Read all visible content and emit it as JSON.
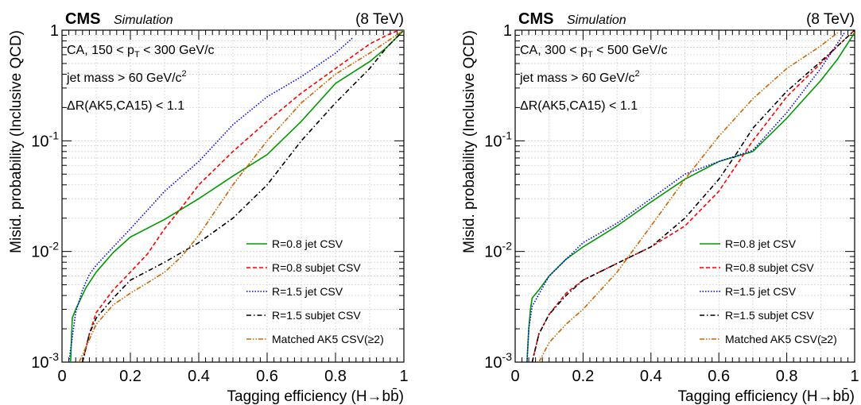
{
  "chart_data": [
    {
      "type": "line",
      "experiment": "CMS",
      "subtitle": "Simulation",
      "energy": "(8 TeV)",
      "xlabel": "Tagging efficiency (H→bb̄)",
      "ylabel": "Misid. probability (Inclusive QCD)",
      "xlim": [
        0,
        1
      ],
      "ylim": [
        0.001,
        1
      ],
      "yscale": "log",
      "grid": true,
      "legend_position": "bottom-right",
      "x_ticks": [
        "0",
        "0.2",
        "0.4",
        "0.6",
        "0.8",
        "1"
      ],
      "y_ticks": [
        {
          "base": "10",
          "exp": "-3",
          "value": 0.001
        },
        {
          "base": "10",
          "exp": "-2",
          "value": 0.01
        },
        {
          "base": "10",
          "exp": "-1",
          "value": 0.1
        },
        {
          "base": "1",
          "exp": "",
          "value": 1
        }
      ],
      "annotations": [
        {
          "pre": "CA, 150 < p",
          "sub": "T",
          "post": " < 300 GeV/c",
          "sup": ""
        },
        {
          "pre": "jet mass > 60 GeV/c",
          "sub": "",
          "post": "",
          "sup": "2"
        },
        {
          "pre": "ΔR(AK5,CA15) < 1.1",
          "sub": "",
          "post": "",
          "sup": ""
        }
      ],
      "series": [
        {
          "name": "R=0.8 jet CSV",
          "color": "#009900",
          "dash": "solid",
          "x": [
            0.025,
            0.03,
            0.04,
            0.07,
            0.1,
            0.15,
            0.2,
            0.3,
            0.4,
            0.5,
            0.6,
            0.7,
            0.8,
            0.9,
            0.95,
            1.0
          ],
          "y": [
            0.001,
            0.0025,
            0.003,
            0.0047,
            0.0065,
            0.0098,
            0.0135,
            0.0195,
            0.03,
            0.048,
            0.075,
            0.15,
            0.33,
            0.52,
            0.7,
            1.0
          ]
        },
        {
          "name": "R=0.8 subjet CSV",
          "color": "#ff0000",
          "dash": "dashed",
          "x": [
            0.06,
            0.08,
            0.1,
            0.15,
            0.2,
            0.25,
            0.3,
            0.35,
            0.4,
            0.5,
            0.6,
            0.7,
            0.8,
            0.9,
            0.95,
            0.985
          ],
          "y": [
            0.001,
            0.0018,
            0.0028,
            0.0045,
            0.0065,
            0.0095,
            0.016,
            0.025,
            0.04,
            0.08,
            0.15,
            0.27,
            0.45,
            0.75,
            0.9,
            1.0
          ]
        },
        {
          "name": "R=1.5 jet CSV",
          "color": "#0000ff",
          "dash": "dotted",
          "x": [
            0.02,
            0.04,
            0.06,
            0.08,
            0.1,
            0.15,
            0.2,
            0.3,
            0.4,
            0.5,
            0.6,
            0.7,
            0.8,
            0.85
          ],
          "y": [
            0.001,
            0.0028,
            0.0045,
            0.0062,
            0.0075,
            0.011,
            0.016,
            0.035,
            0.065,
            0.14,
            0.25,
            0.38,
            0.62,
            0.85
          ]
        },
        {
          "name": "R=1.5 subjet CSV",
          "color": "#000000",
          "dash": "dashdot",
          "x": [
            0.06,
            0.08,
            0.1,
            0.15,
            0.2,
            0.3,
            0.4,
            0.5,
            0.6,
            0.7,
            0.8,
            0.9,
            0.95,
            1.0
          ],
          "y": [
            0.001,
            0.0018,
            0.0025,
            0.0038,
            0.0055,
            0.008,
            0.012,
            0.02,
            0.04,
            0.1,
            0.22,
            0.45,
            0.7,
            1.0
          ]
        },
        {
          "name": "Matched AK5 CSV(≥2)",
          "color": "#cc6600",
          "dash": "dashdotdot",
          "x": [
            0.05,
            0.08,
            0.1,
            0.15,
            0.2,
            0.25,
            0.3,
            0.35,
            0.4,
            0.5,
            0.6,
            0.7,
            0.8,
            0.9,
            1.0
          ],
          "y": [
            0.001,
            0.0016,
            0.0022,
            0.0033,
            0.0042,
            0.0052,
            0.0065,
            0.009,
            0.014,
            0.04,
            0.1,
            0.22,
            0.4,
            0.62,
            1.0
          ]
        }
      ]
    },
    {
      "type": "line",
      "experiment": "CMS",
      "subtitle": "Simulation",
      "energy": "(8 TeV)",
      "xlabel": "Tagging efficiency (H→bb̄)",
      "ylabel": "Misid. probability (Inclusive QCD)",
      "xlim": [
        0,
        1
      ],
      "ylim": [
        0.001,
        1
      ],
      "yscale": "log",
      "grid": true,
      "legend_position": "bottom-right",
      "x_ticks": [
        "0",
        "0.2",
        "0.4",
        "0.6",
        "0.8",
        "1"
      ],
      "y_ticks": [
        {
          "base": "10",
          "exp": "-3",
          "value": 0.001
        },
        {
          "base": "10",
          "exp": "-2",
          "value": 0.01
        },
        {
          "base": "10",
          "exp": "-1",
          "value": 0.1
        },
        {
          "base": "1",
          "exp": "",
          "value": 1
        }
      ],
      "annotations": [
        {
          "pre": "CA, 300 < p",
          "sub": "T",
          "post": " < 500 GeV/c",
          "sup": ""
        },
        {
          "pre": "jet mass > 60 GeV/c",
          "sub": "",
          "post": "",
          "sup": "2"
        },
        {
          "pre": "ΔR(AK5,CA15) < 1.1",
          "sub": "",
          "post": "",
          "sup": ""
        }
      ],
      "series": [
        {
          "name": "R=0.8 jet CSV",
          "color": "#009900",
          "dash": "solid",
          "x": [
            0.035,
            0.04,
            0.045,
            0.05,
            0.07,
            0.1,
            0.15,
            0.2,
            0.3,
            0.4,
            0.5,
            0.6,
            0.7,
            0.8,
            0.9,
            0.95,
            1.0
          ],
          "y": [
            0.001,
            0.002,
            0.003,
            0.0038,
            0.0045,
            0.006,
            0.0085,
            0.011,
            0.017,
            0.028,
            0.045,
            0.065,
            0.08,
            0.16,
            0.35,
            0.55,
            0.95
          ]
        },
        {
          "name": "R=0.8 subjet CSV",
          "color": "#ff0000",
          "dash": "dashed",
          "x": [
            0.05,
            0.07,
            0.1,
            0.15,
            0.2,
            0.3,
            0.4,
            0.5,
            0.6,
            0.7,
            0.8,
            0.9,
            0.95,
            1.0
          ],
          "y": [
            0.001,
            0.0018,
            0.0027,
            0.0042,
            0.0055,
            0.0078,
            0.011,
            0.017,
            0.035,
            0.1,
            0.25,
            0.5,
            0.72,
            1.0
          ]
        },
        {
          "name": "R=1.5 jet CSV",
          "color": "#0000ff",
          "dash": "dotted",
          "x": [
            0.035,
            0.04,
            0.05,
            0.1,
            0.15,
            0.2,
            0.3,
            0.4,
            0.5,
            0.6,
            0.7,
            0.8,
            0.9,
            0.97
          ],
          "y": [
            0.001,
            0.002,
            0.0032,
            0.006,
            0.0085,
            0.012,
            0.018,
            0.03,
            0.05,
            0.065,
            0.082,
            0.18,
            0.45,
            0.95
          ]
        },
        {
          "name": "R=1.5 subjet CSV",
          "color": "#000000",
          "dash": "dashdot",
          "x": [
            0.05,
            0.07,
            0.1,
            0.15,
            0.2,
            0.3,
            0.4,
            0.5,
            0.6,
            0.65,
            0.7,
            0.8,
            0.9,
            1.0
          ],
          "y": [
            0.001,
            0.0018,
            0.0027,
            0.004,
            0.0055,
            0.0078,
            0.011,
            0.02,
            0.045,
            0.075,
            0.13,
            0.28,
            0.52,
            1.0
          ]
        },
        {
          "name": "Matched AK5 CSV(≥2)",
          "color": "#cc6600",
          "dash": "dashdotdot",
          "x": [
            0.07,
            0.1,
            0.15,
            0.2,
            0.3,
            0.4,
            0.5,
            0.6,
            0.7,
            0.8,
            0.9,
            0.95
          ],
          "y": [
            0.001,
            0.0015,
            0.0022,
            0.003,
            0.0065,
            0.017,
            0.045,
            0.11,
            0.24,
            0.45,
            0.72,
            0.95
          ]
        }
      ]
    }
  ]
}
